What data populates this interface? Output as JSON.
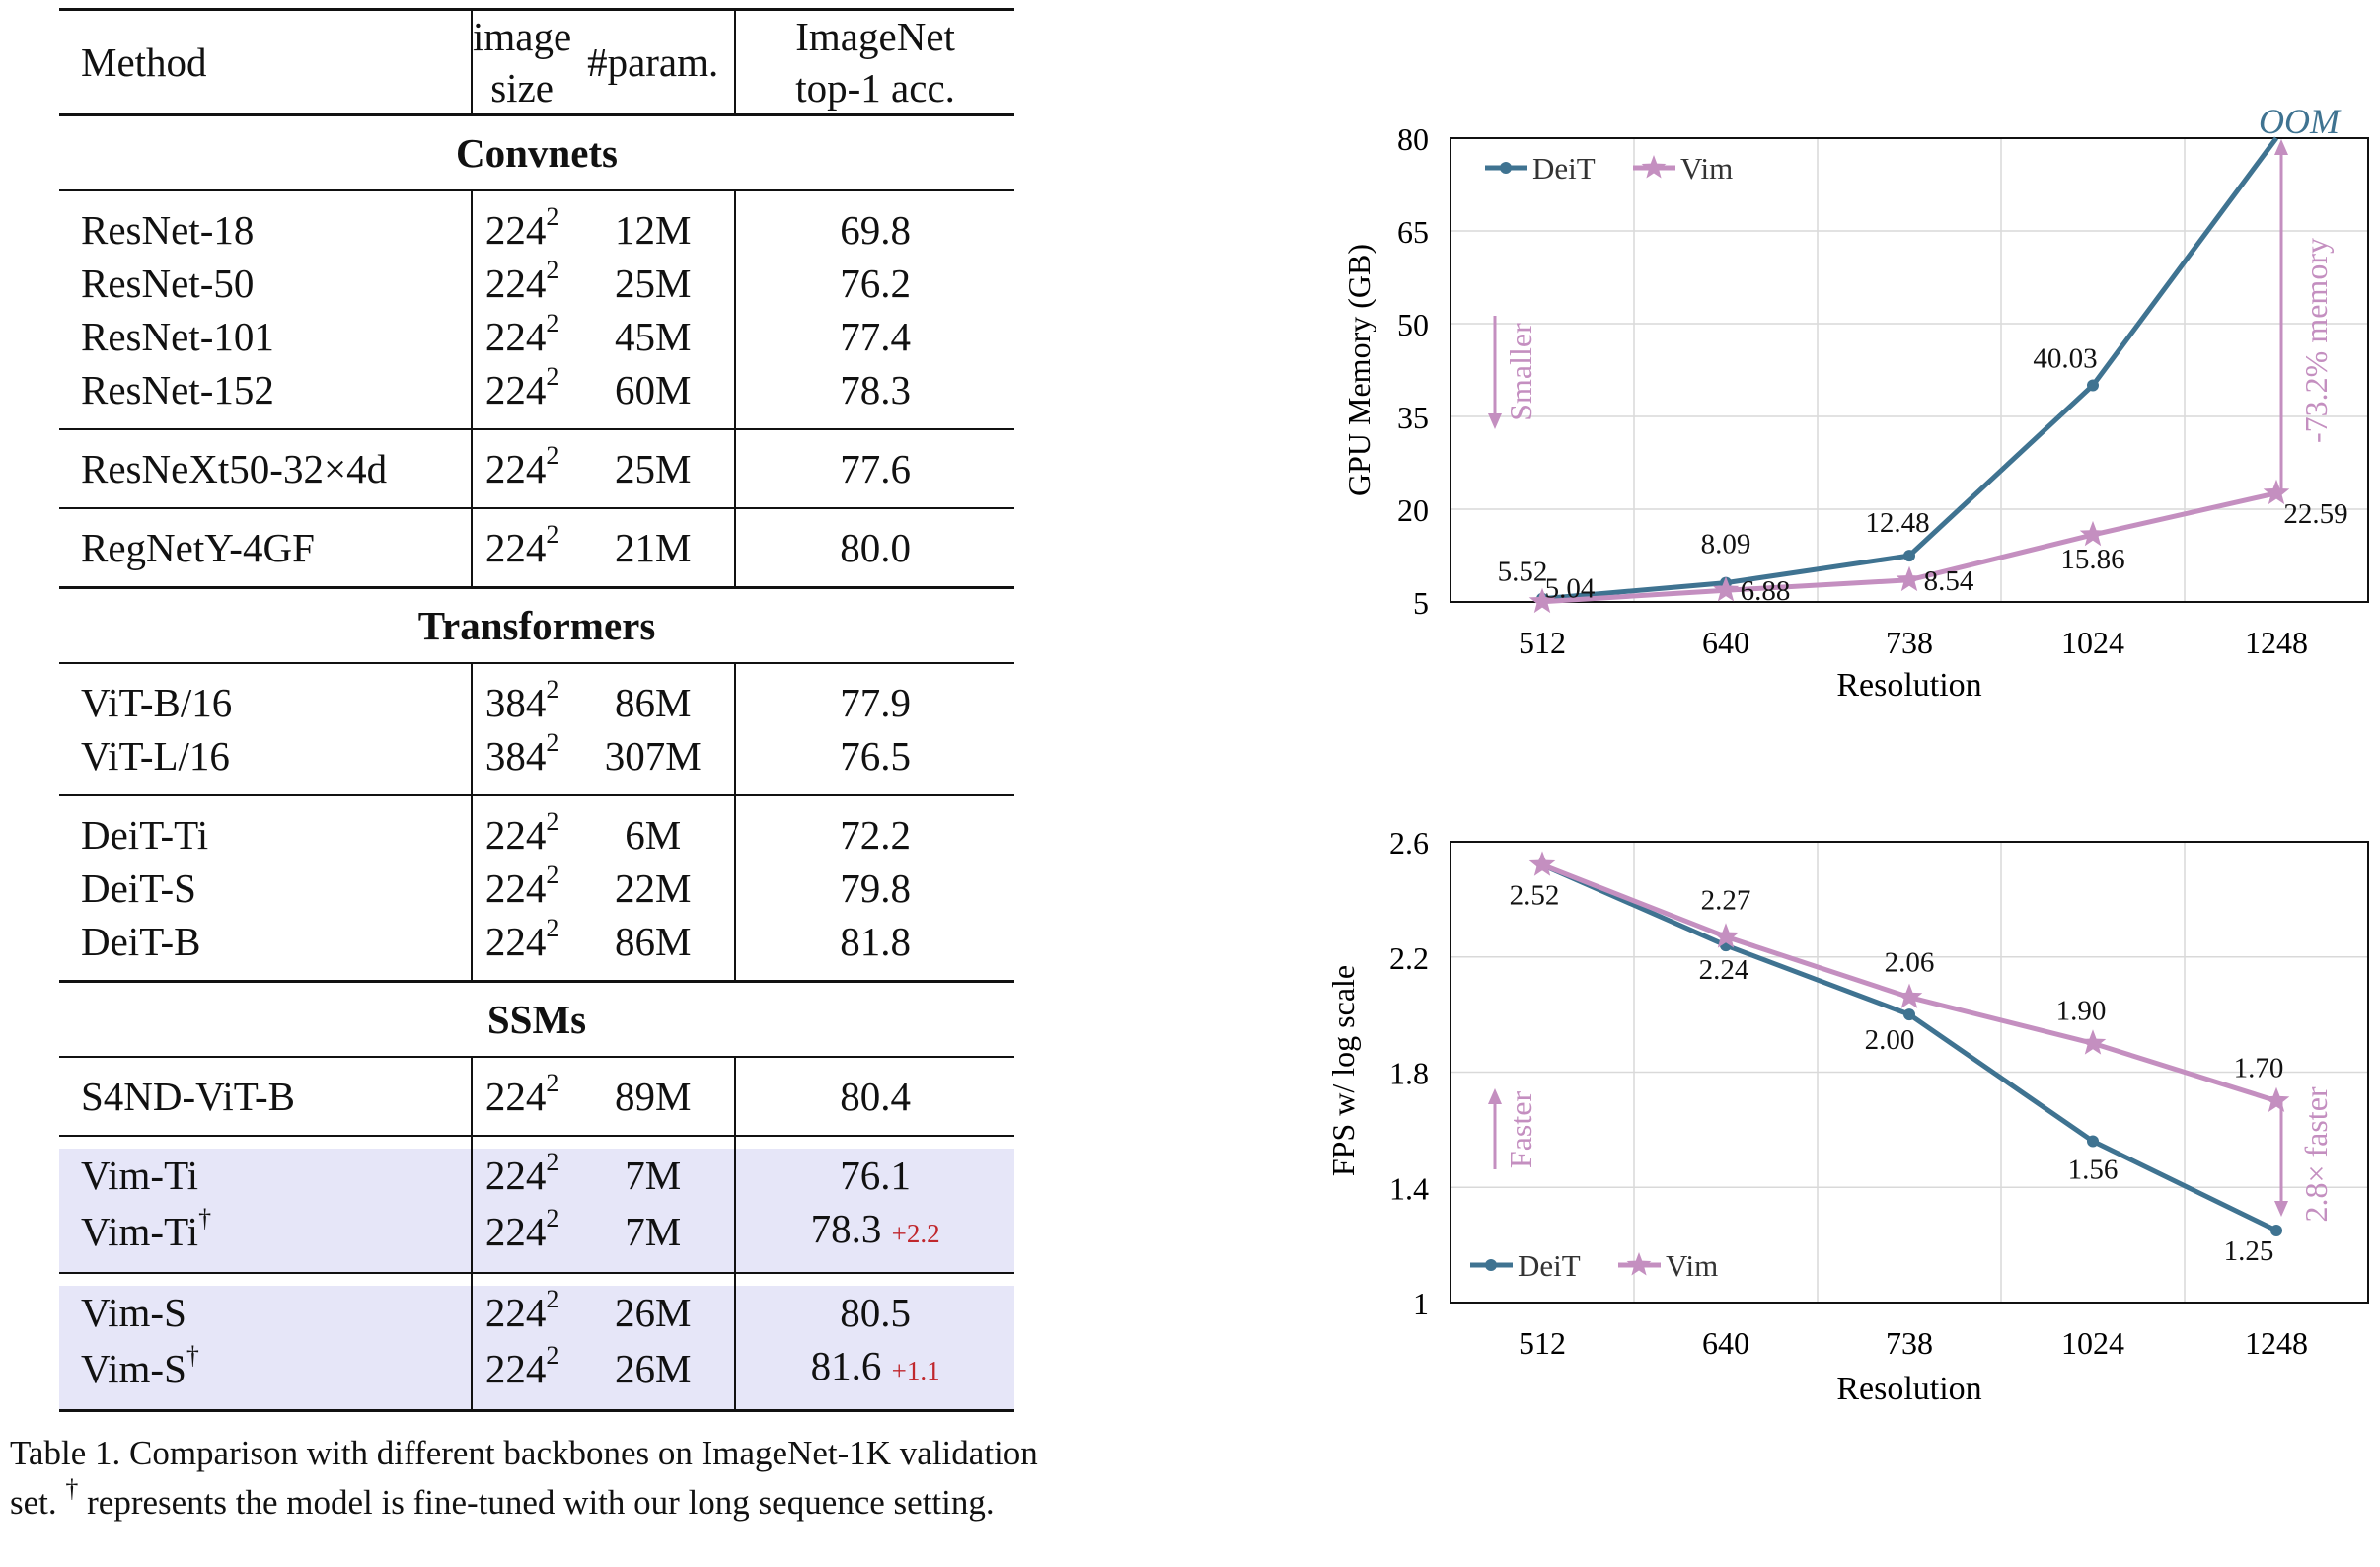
{
  "table": {
    "header": {
      "method": "Method",
      "image_size_line1": "image",
      "image_size_line2": "size",
      "param": "#param.",
      "acc_line1": "ImageNet",
      "acc_line2": "top-1 acc."
    },
    "sections": {
      "convnets": "Convnets",
      "transformers": "Transformers",
      "ssms": "SSMs"
    },
    "rows": {
      "resnet18": {
        "method": "ResNet-18",
        "base": "224",
        "exp": "2",
        "param": "12M",
        "acc": "69.8"
      },
      "resnet50": {
        "method": "ResNet-50",
        "base": "224",
        "exp": "2",
        "param": "25M",
        "acc": "76.2"
      },
      "resnet101": {
        "method": "ResNet-101",
        "base": "224",
        "exp": "2",
        "param": "45M",
        "acc": "77.4"
      },
      "resnet152": {
        "method": "ResNet-152",
        "base": "224",
        "exp": "2",
        "param": "60M",
        "acc": "78.3"
      },
      "resnext": {
        "method": "ResNeXt50-32×4d",
        "base": "224",
        "exp": "2",
        "param": "25M",
        "acc": "77.6"
      },
      "regnet": {
        "method": "RegNetY-4GF",
        "base": "224",
        "exp": "2",
        "param": "21M",
        "acc": "80.0"
      },
      "vitb": {
        "method": "ViT-B/16",
        "base": "384",
        "exp": "2",
        "param": "86M",
        "acc": "77.9"
      },
      "vitl": {
        "method": "ViT-L/16",
        "base": "384",
        "exp": "2",
        "param": "307M",
        "acc": "76.5"
      },
      "deitti": {
        "method": "DeiT-Ti",
        "base": "224",
        "exp": "2",
        "param": "6M",
        "acc": "72.2"
      },
      "deits": {
        "method": "DeiT-S",
        "base": "224",
        "exp": "2",
        "param": "22M",
        "acc": "79.8"
      },
      "deitb": {
        "method": "DeiT-B",
        "base": "224",
        "exp": "2",
        "param": "86M",
        "acc": "81.8"
      },
      "s4nd": {
        "method": "S4ND-ViT-B",
        "base": "224",
        "exp": "2",
        "param": "89M",
        "acc": "80.4"
      },
      "vimti": {
        "method": "Vim-Ti",
        "base": "224",
        "exp": "2",
        "param": "7M",
        "acc": "76.1"
      },
      "vimti_ft": {
        "method": "Vim-Ti",
        "dagger": "†",
        "base": "224",
        "exp": "2",
        "param": "7M",
        "acc": "78.3",
        "delta": "+2.2"
      },
      "vims": {
        "method": "Vim-S",
        "base": "224",
        "exp": "2",
        "param": "26M",
        "acc": "80.5"
      },
      "vims_ft": {
        "method": "Vim-S",
        "dagger": "†",
        "base": "224",
        "exp": "2",
        "param": "26M",
        "acc": "81.6",
        "delta": "+1.1"
      }
    }
  },
  "caption": {
    "part1": "Table 1.  Comparison with different backbones on ImageNet-1K validation set. ",
    "dagger": "†",
    "part2": " represents the model is fine-tuned with our long sequence setting."
  },
  "chart_data": [
    {
      "type": "line",
      "title": "",
      "xlabel": "Resolution",
      "ylabel": "GPU Memory (GB)",
      "categories": [
        "512",
        "640",
        "738",
        "1024",
        "1248"
      ],
      "yticks": [
        5,
        20,
        35,
        50,
        65,
        80
      ],
      "ylim": [
        5,
        80
      ],
      "series": [
        {
          "name": "DeiT",
          "values": [
            5.52,
            8.09,
            12.48,
            40.03,
            80
          ],
          "labels": [
            "5.52",
            "8.09",
            "12.48",
            "40.03",
            ""
          ],
          "color": "#3f7391",
          "marker": "circle"
        },
        {
          "name": "Vim",
          "values": [
            5.04,
            6.88,
            8.54,
            15.86,
            22.59
          ],
          "labels": [
            "5.04",
            "6.88",
            "8.54",
            "15.86",
            "22.59"
          ],
          "color": "#c48fc0",
          "marker": "star"
        }
      ],
      "annotations": {
        "oom": "OOM",
        "smaller": "Smaller",
        "reduction": "-73.2% memory"
      },
      "legend": "top-left"
    },
    {
      "type": "line",
      "title": "",
      "xlabel": "Resolution",
      "ylabel": "FPS w/ log scale",
      "categories": [
        "512",
        "640",
        "738",
        "1024",
        "1248"
      ],
      "yticks": [
        1,
        1.4,
        1.8,
        2.2,
        2.6
      ],
      "ytick_labels": [
        "1",
        "1.4",
        "1.8",
        "2.2",
        "2.6"
      ],
      "ylim": [
        1,
        2.6
      ],
      "series": [
        {
          "name": "DeiT",
          "values": [
            2.52,
            2.24,
            2.0,
            1.56,
            1.25
          ],
          "labels": [
            "2.52",
            "2.24",
            "2.00",
            "1.56",
            "1.25"
          ],
          "color": "#3f7391",
          "marker": "circle"
        },
        {
          "name": "Vim",
          "values": [
            2.52,
            2.27,
            2.06,
            1.9,
            1.7
          ],
          "labels": [
            "",
            "2.27",
            "2.06",
            "1.90",
            "1.70"
          ],
          "color": "#c48fc0",
          "marker": "star"
        }
      ],
      "annotations": {
        "faster": "Faster",
        "speedup": "2.8× faster"
      },
      "legend": "bottom-left"
    }
  ]
}
